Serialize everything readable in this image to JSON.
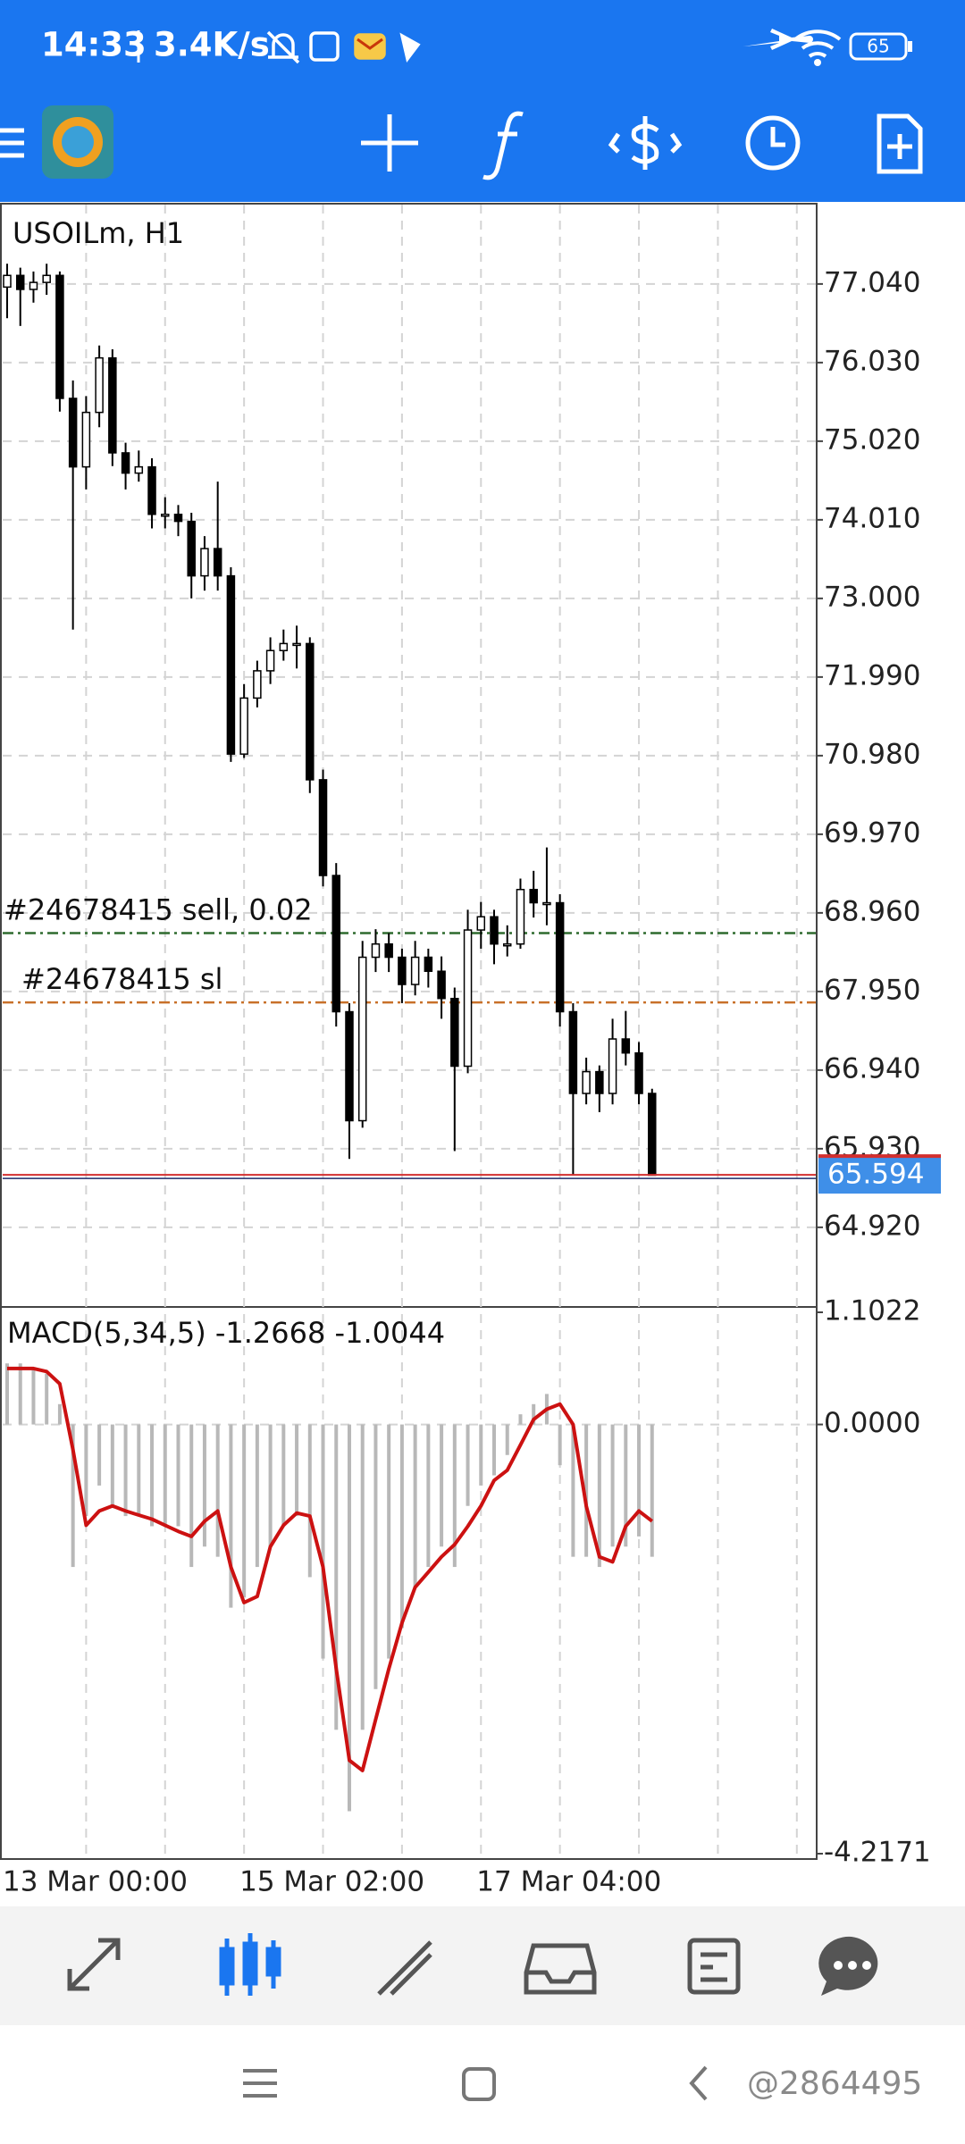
{
  "status_bar": {
    "time": "14:33",
    "speed": "3.4K/s",
    "battery": "65"
  },
  "chart_data": [
    {
      "type": "candlestick",
      "title": "USOILm, H1",
      "x": [
        "13 Mar 00:00",
        null,
        null,
        null,
        null,
        null,
        null,
        null,
        null,
        null,
        null,
        null,
        null,
        null,
        null,
        null,
        null,
        null,
        "15 Mar 02:00",
        null,
        null,
        null,
        null,
        null,
        null,
        null,
        null,
        null,
        null,
        null,
        null,
        null,
        null,
        null,
        null,
        null,
        "17 Mar 04:00",
        null,
        null,
        null,
        null,
        null,
        null,
        null,
        null,
        null,
        null,
        null,
        null,
        null
      ],
      "open": [
        77.0,
        77.15,
        76.97,
        77.06,
        77.15,
        75.57,
        74.69,
        75.39,
        76.09,
        74.87,
        74.61,
        74.69,
        74.08,
        74.08,
        73.99,
        73.29,
        73.64,
        73.29,
        71.0,
        71.72,
        72.07,
        72.33,
        72.42,
        72.42,
        70.67,
        69.44,
        67.69,
        66.29,
        68.39,
        68.56,
        68.39,
        68.04,
        68.39,
        68.21,
        67.86,
        66.99,
        68.74,
        68.91,
        68.56,
        68.56,
        69.26,
        69.09,
        69.09,
        67.69,
        66.64,
        66.92,
        66.64,
        67.34,
        67.16,
        66.64
      ],
      "high": [
        77.3,
        77.25,
        77.2,
        77.3,
        77.2,
        75.8,
        75.6,
        76.25,
        76.2,
        75.0,
        74.9,
        74.8,
        74.3,
        74.2,
        74.1,
        73.8,
        74.5,
        73.4,
        71.9,
        72.2,
        72.5,
        72.6,
        72.65,
        72.5,
        70.8,
        69.6,
        67.8,
        68.6,
        68.75,
        68.7,
        68.5,
        68.6,
        68.5,
        68.4,
        68.0,
        69.0,
        69.1,
        69.0,
        68.8,
        69.4,
        69.5,
        69.8,
        69.2,
        67.8,
        67.1,
        67.0,
        67.6,
        67.7,
        67.3,
        66.7
      ],
      "low": [
        76.6,
        76.5,
        76.8,
        76.9,
        75.4,
        72.6,
        74.4,
        75.2,
        74.7,
        74.4,
        74.5,
        73.9,
        73.9,
        73.8,
        73.0,
        73.1,
        73.1,
        70.9,
        70.95,
        71.6,
        71.9,
        72.2,
        72.1,
        70.5,
        69.3,
        67.5,
        65.8,
        66.2,
        68.2,
        68.2,
        67.8,
        67.9,
        68.0,
        67.6,
        65.9,
        66.9,
        68.5,
        68.3,
        68.4,
        68.5,
        68.9,
        68.8,
        67.5,
        65.6,
        66.5,
        66.4,
        66.5,
        67.0,
        66.5,
        65.59
      ],
      "close": [
        77.15,
        76.97,
        77.06,
        77.15,
        75.57,
        74.69,
        75.39,
        76.09,
        74.87,
        74.61,
        74.69,
        74.08,
        74.08,
        73.99,
        73.29,
        73.64,
        73.29,
        71.0,
        71.72,
        72.07,
        72.33,
        72.42,
        72.42,
        70.67,
        69.44,
        67.69,
        66.29,
        68.39,
        68.56,
        68.39,
        68.04,
        68.39,
        68.21,
        67.86,
        66.99,
        68.74,
        68.91,
        68.56,
        68.56,
        69.26,
        69.09,
        69.09,
        67.69,
        66.64,
        66.92,
        66.64,
        67.34,
        67.16,
        66.64,
        65.59
      ],
      "up_color": "#ffffff",
      "down_color": "#000000",
      "wick_color": "#000000",
      "ylim": [
        63.92,
        78.06
      ],
      "yticks": [
        {
          "value": 77.04,
          "label": "77.040"
        },
        {
          "value": 76.03,
          "label": "76.030"
        },
        {
          "value": 75.02,
          "label": "75.020"
        },
        {
          "value": 74.01,
          "label": "74.010"
        },
        {
          "value": 73,
          "label": "73.000"
        },
        {
          "value": 71.99,
          "label": "71.990"
        },
        {
          "value": 70.98,
          "label": "70.980"
        },
        {
          "value": 69.97,
          "label": "69.970"
        },
        {
          "value": 68.96,
          "label": "68.960"
        },
        {
          "value": 67.95,
          "label": "67.950"
        },
        {
          "value": 66.94,
          "label": "66.940"
        },
        {
          "value": 65.93,
          "label": "65.930"
        },
        {
          "value": 64.92,
          "label": "64.920"
        }
      ],
      "grid": true,
      "current_price": 65.594,
      "order_lines": [
        {
          "label": "#24678415 sell, 0.02",
          "value": 68.7,
          "color": "#2e6b2e"
        },
        {
          "label": "#24678415 sl",
          "value": 67.81,
          "color": "#c8702a"
        }
      ]
    },
    {
      "type": "macd",
      "title": "MACD(5,34,5) -1.2668 -1.0044",
      "histogram": [
        0.6,
        0.6,
        0.55,
        0.5,
        0.2,
        -1.4,
        -0.9,
        -0.6,
        -0.8,
        -0.9,
        -0.9,
        -1.0,
        -1.0,
        -1.0,
        -1.4,
        -1.2,
        -1.3,
        -1.8,
        -1.7,
        -1.4,
        -1.2,
        -1.0,
        -0.9,
        -1.5,
        -2.3,
        -3.0,
        -3.8,
        -3.0,
        -2.6,
        -2.3,
        -2.0,
        -1.6,
        -1.4,
        -1.2,
        -1.4,
        -0.8,
        -0.6,
        -0.5,
        -0.3,
        0.1,
        0.2,
        0.3,
        -0.4,
        -1.3,
        -1.3,
        -1.4,
        -1.2,
        -1.2,
        -1.1,
        -1.3
      ],
      "signal": [
        0.55,
        0.55,
        0.55,
        0.52,
        0.4,
        -0.25,
        -0.99,
        -0.85,
        -0.8,
        -0.85,
        -0.89,
        -0.93,
        -0.99,
        -1.05,
        -1.1,
        -0.95,
        -0.85,
        -1.4,
        -1.75,
        -1.69,
        -1.2,
        -0.99,
        -0.87,
        -0.9,
        -1.4,
        -2.4,
        -3.3,
        -3.4,
        -2.9,
        -2.4,
        -1.95,
        -1.6,
        -1.45,
        -1.3,
        -1.18,
        -1.0,
        -0.8,
        -0.55,
        -0.45,
        -0.2,
        0.05,
        0.15,
        0.2,
        0.0,
        -0.8,
        -1.3,
        -1.35,
        -1.0,
        -0.85,
        -0.95
      ],
      "histogram_color": "#b8b8b8",
      "signal_color": "#cc1111",
      "ylim": [
        -4.2171,
        1.1022
      ],
      "yticks": [
        1.1022,
        {
          "value": 0,
          "label": "0.0000"
        },
        -4.2171
      ]
    }
  ],
  "watermark": "@2864495"
}
